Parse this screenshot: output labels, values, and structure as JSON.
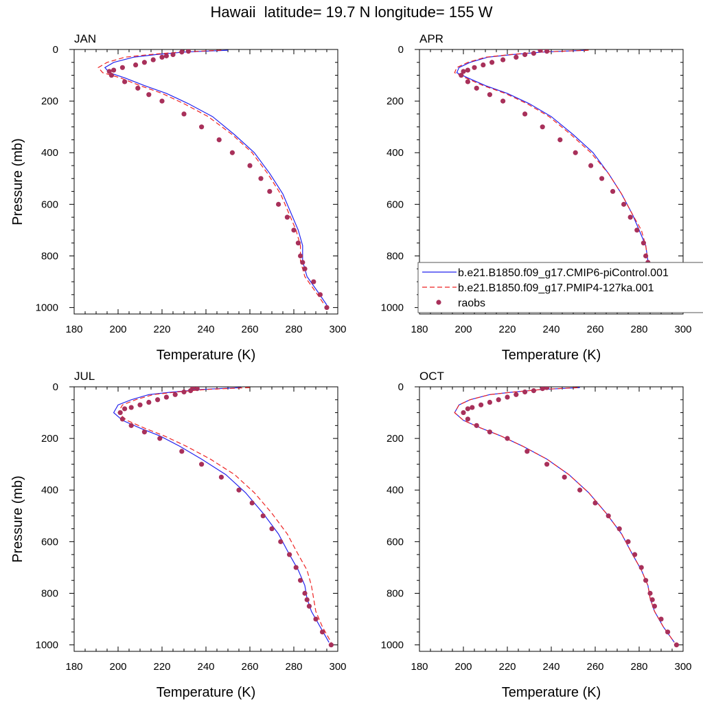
{
  "title": "Hawaii  latitude= 19.7 N longitude= 155 W",
  "colors": {
    "model1": "#2222ee",
    "model2": "#ee2222",
    "obs": "#a8305a"
  },
  "legend": {
    "entries": [
      {
        "label": "b.e21.B1850.f09_g17.CMIP6-piControl.001",
        "style": "solid",
        "color": "#2222ee"
      },
      {
        "label": "b.e21.B1850.f09_g17.PMIP4-127ka.001",
        "style": "dashed",
        "color": "#ee2222"
      },
      {
        "label": "raobs",
        "style": "marker",
        "color": "#a8305a"
      }
    ]
  },
  "chart_data": [
    {
      "type": "line",
      "panel": "JAN",
      "xlabel": "Temperature (K)",
      "ylabel": "Pressure (mb)",
      "xlim": [
        180,
        300
      ],
      "ylim": [
        1025,
        0
      ],
      "y_reversed": true,
      "xticks": [
        180,
        200,
        220,
        240,
        260,
        280,
        300
      ],
      "yticks": [
        0,
        200,
        400,
        600,
        800,
        1000
      ],
      "series": [
        {
          "name": "b.e21.B1850.f09_g17.CMIP6-piControl.001",
          "style": "solid",
          "x": [
            250,
            230,
            217,
            207,
            198,
            194,
            196,
            203,
            212,
            222,
            232,
            243,
            253,
            262,
            269,
            275,
            279,
            282,
            284,
            284,
            286,
            291,
            295
          ],
          "y": [
            3,
            10,
            20,
            30,
            50,
            70,
            90,
            110,
            140,
            170,
            210,
            260,
            330,
            400,
            480,
            560,
            640,
            700,
            760,
            820,
            880,
            940,
            990
          ]
        },
        {
          "name": "b.e21.B1850.f09_g17.PMIP4-127ka.001",
          "style": "dashed",
          "x": [
            247,
            228,
            214,
            203,
            195,
            191,
            193,
            201,
            210,
            220,
            230,
            241,
            252,
            261,
            268,
            274,
            278,
            281,
            283,
            283,
            285,
            290,
            294
          ],
          "y": [
            3,
            10,
            20,
            30,
            50,
            70,
            90,
            110,
            140,
            170,
            210,
            260,
            330,
            400,
            480,
            560,
            640,
            700,
            760,
            820,
            880,
            940,
            990
          ]
        },
        {
          "name": "raobs",
          "style": "marker",
          "x": [
            232,
            229,
            225,
            222,
            220,
            216,
            212,
            208,
            202,
            198,
            196,
            197,
            203,
            209,
            214,
            220,
            230,
            238,
            246,
            252,
            260,
            265,
            269,
            273,
            277,
            280,
            282,
            283,
            284,
            285,
            289,
            292,
            295
          ],
          "y": [
            7,
            10,
            20,
            25,
            30,
            40,
            50,
            60,
            70,
            80,
            85,
            100,
            125,
            150,
            175,
            200,
            250,
            300,
            350,
            400,
            450,
            500,
            550,
            600,
            650,
            700,
            750,
            800,
            825,
            850,
            900,
            950,
            1000
          ]
        }
      ]
    },
    {
      "type": "line",
      "panel": "APR",
      "xlabel": "Temperature (K)",
      "ylabel": "",
      "xlim": [
        180,
        300
      ],
      "ylim": [
        1025,
        0
      ],
      "y_reversed": true,
      "xticks": [
        180,
        200,
        220,
        240,
        260,
        280,
        300
      ],
      "yticks": [
        0,
        200,
        400,
        600,
        800,
        1000
      ],
      "series": [
        {
          "name": "b.e21.B1850.f09_g17.CMIP6-piControl.001",
          "style": "solid",
          "x": [
            256,
            236,
            222,
            211,
            203,
            198,
            197,
            202,
            210,
            220,
            230,
            240,
            250,
            259,
            266,
            272,
            277,
            280,
            283,
            284,
            287,
            291,
            295
          ],
          "y": [
            3,
            10,
            20,
            30,
            50,
            70,
            90,
            110,
            140,
            170,
            210,
            260,
            330,
            400,
            480,
            560,
            640,
            700,
            760,
            820,
            880,
            940,
            990
          ]
        },
        {
          "name": "b.e21.B1850.f09_g17.PMIP4-127ka.001",
          "style": "dashed",
          "x": [
            257,
            235,
            221,
            210,
            202,
            197,
            196,
            201,
            209,
            219,
            229,
            239,
            249,
            258,
            266,
            272,
            277,
            281,
            283,
            284,
            287,
            291,
            295
          ],
          "y": [
            3,
            10,
            20,
            30,
            50,
            70,
            90,
            110,
            140,
            170,
            210,
            260,
            330,
            400,
            480,
            560,
            640,
            700,
            760,
            820,
            880,
            940,
            990
          ]
        },
        {
          "name": "raobs",
          "style": "marker",
          "x": [
            235,
            238,
            232,
            228,
            224,
            218,
            213,
            209,
            205,
            202,
            200,
            199,
            202,
            206,
            212,
            218,
            228,
            236,
            244,
            251,
            258,
            263,
            268,
            273,
            276,
            279,
            282,
            283,
            284,
            285,
            288,
            291,
            295
          ],
          "y": [
            3,
            7,
            15,
            20,
            30,
            40,
            50,
            60,
            70,
            80,
            85,
            100,
            125,
            150,
            175,
            200,
            250,
            300,
            350,
            400,
            450,
            500,
            550,
            600,
            650,
            700,
            750,
            800,
            825,
            850,
            900,
            950,
            1000
          ]
        }
      ]
    },
    {
      "type": "line",
      "panel": "JUL",
      "xlabel": "Temperature (K)",
      "ylabel": "Pressure (mb)",
      "xlim": [
        180,
        300
      ],
      "ylim": [
        1025,
        0
      ],
      "y_reversed": true,
      "xticks": [
        180,
        200,
        220,
        240,
        260,
        280,
        300
      ],
      "yticks": [
        0,
        200,
        400,
        600,
        800,
        1000
      ],
      "series": [
        {
          "name": "b.e21.B1850.f09_g17.CMIP6-piControl.001",
          "style": "solid",
          "x": [
            256,
            238,
            225,
            214,
            206,
            200,
            198,
            202,
            210,
            219,
            228,
            238,
            249,
            258,
            266,
            273,
            278,
            282,
            285,
            286,
            288,
            292,
            296
          ],
          "y": [
            3,
            10,
            20,
            30,
            50,
            70,
            100,
            130,
            160,
            190,
            230,
            280,
            340,
            410,
            490,
            570,
            650,
            710,
            770,
            820,
            870,
            930,
            990
          ]
        },
        {
          "name": "b.e21.B1850.f09_g17.PMIP4-127ka.001",
          "style": "dashed",
          "x": [
            260,
            240,
            227,
            216,
            208,
            202,
            200,
            204,
            212,
            221,
            231,
            242,
            253,
            262,
            270,
            277,
            282,
            286,
            288,
            289,
            290,
            293,
            297
          ],
          "y": [
            3,
            10,
            20,
            30,
            50,
            70,
            100,
            130,
            160,
            190,
            230,
            280,
            340,
            410,
            490,
            570,
            650,
            710,
            770,
            820,
            870,
            930,
            990
          ]
        },
        {
          "name": "raobs",
          "style": "marker",
          "x": [
            234,
            236,
            233,
            230,
            226,
            222,
            218,
            214,
            210,
            206,
            203,
            201,
            202,
            206,
            212,
            219,
            229,
            238,
            247,
            255,
            261,
            266,
            270,
            274,
            278,
            281,
            283,
            285,
            286,
            287,
            290,
            293,
            297
          ],
          "y": [
            3,
            7,
            15,
            20,
            30,
            40,
            50,
            60,
            70,
            80,
            85,
            100,
            125,
            150,
            175,
            200,
            250,
            300,
            350,
            400,
            450,
            500,
            550,
            600,
            650,
            700,
            750,
            800,
            825,
            850,
            900,
            950,
            1000
          ]
        }
      ]
    },
    {
      "type": "line",
      "panel": "OCT",
      "xlabel": "Temperature (K)",
      "ylabel": "",
      "xlim": [
        180,
        300
      ],
      "ylim": [
        1025,
        0
      ],
      "y_reversed": true,
      "xticks": [
        180,
        200,
        220,
        240,
        260,
        280,
        300
      ],
      "yticks": [
        0,
        200,
        400,
        600,
        800,
        1000
      ],
      "series": [
        {
          "name": "b.e21.B1850.f09_g17.CMIP6-piControl.001",
          "style": "solid",
          "x": [
            253,
            236,
            223,
            212,
            203,
            198,
            196,
            200,
            208,
            217,
            227,
            238,
            248,
            257,
            265,
            272,
            277,
            281,
            284,
            285,
            287,
            291,
            296
          ],
          "y": [
            3,
            10,
            20,
            30,
            50,
            70,
            100,
            130,
            160,
            190,
            230,
            280,
            340,
            410,
            490,
            570,
            650,
            710,
            770,
            820,
            870,
            930,
            990
          ]
        },
        {
          "name": "b.e21.B1850.f09_g17.PMIP4-127ka.001",
          "style": "dashed",
          "x": [
            252,
            236,
            223,
            212,
            203,
            198,
            196,
            200,
            208,
            217,
            227,
            238,
            248,
            257,
            265,
            272,
            277,
            281,
            284,
            285,
            287,
            291,
            296
          ],
          "y": [
            3,
            10,
            20,
            30,
            50,
            70,
            100,
            130,
            160,
            190,
            230,
            280,
            340,
            410,
            490,
            570,
            650,
            710,
            770,
            820,
            870,
            930,
            990
          ]
        },
        {
          "name": "raobs",
          "style": "marker",
          "x": [
            238,
            236,
            232,
            228,
            224,
            220,
            216,
            212,
            208,
            204,
            202,
            200,
            202,
            206,
            212,
            220,
            229,
            238,
            246,
            253,
            260,
            266,
            271,
            275,
            278,
            281,
            283,
            285,
            286,
            287,
            290,
            293,
            297
          ],
          "y": [
            3,
            7,
            15,
            20,
            30,
            40,
            50,
            60,
            70,
            80,
            85,
            100,
            125,
            150,
            175,
            200,
            250,
            300,
            350,
            400,
            450,
            500,
            550,
            600,
            650,
            700,
            750,
            800,
            825,
            850,
            900,
            950,
            1000
          ]
        }
      ]
    }
  ]
}
